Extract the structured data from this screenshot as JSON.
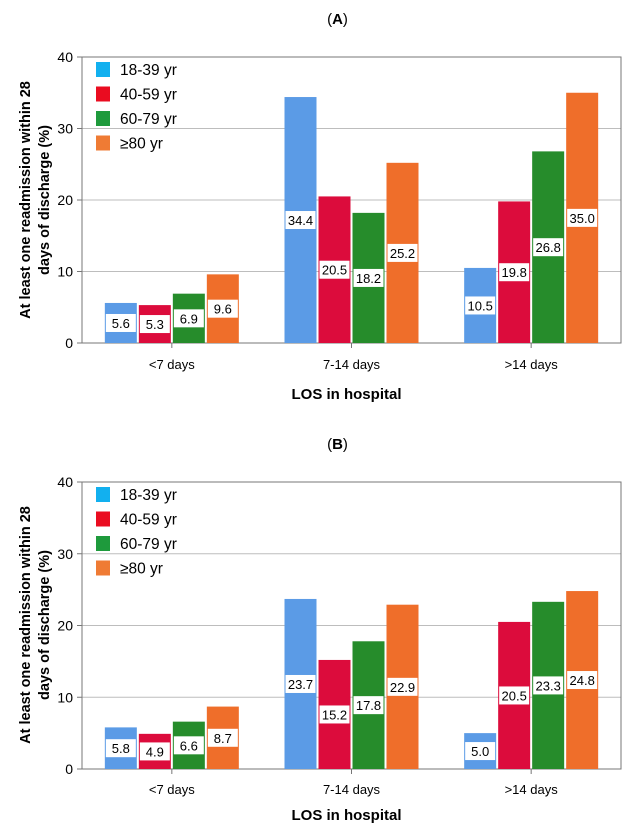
{
  "chart_data": [
    {
      "type": "bar",
      "panel_label": "A",
      "categories": [
        "<7 days",
        "7-14 days",
        ">14 days"
      ],
      "series": [
        {
          "name": "18-39 yr",
          "values": [
            5.6,
            34.4,
            10.5
          ]
        },
        {
          "name": "40-59 yr",
          "values": [
            5.3,
            20.5,
            19.8
          ]
        },
        {
          "name": "60-79 yr",
          "values": [
            6.9,
            18.2,
            26.8
          ]
        },
        {
          "name": "≥80 yr",
          "values": [
            9.6,
            25.2,
            35.0
          ]
        }
      ],
      "data_labels": [
        [
          "5.6",
          "34.4",
          "10.5"
        ],
        [
          "5.3",
          "20.5",
          "19.8"
        ],
        [
          "6.9",
          "18.2",
          "26.8"
        ],
        [
          "9.6",
          "25.2",
          "35.0"
        ]
      ],
      "xlabel": "LOS in hospital",
      "ylabel": "At least one readmission within 28 days of discharge (%)",
      "ylim": [
        0,
        40
      ],
      "yticks": [
        "0",
        "10",
        "20",
        "30",
        "40"
      ],
      "grid": true,
      "legend": "top-left"
    },
    {
      "type": "bar",
      "panel_label": "B",
      "categories": [
        "<7 days",
        "7-14 days",
        ">14 days"
      ],
      "series": [
        {
          "name": "18-39 yr",
          "values": [
            5.8,
            23.7,
            5.0
          ]
        },
        {
          "name": "40-59 yr",
          "values": [
            4.9,
            15.2,
            20.5
          ]
        },
        {
          "name": "60-79 yr",
          "values": [
            6.6,
            17.8,
            23.3
          ]
        },
        {
          "name": "≥80 yr",
          "values": [
            8.7,
            22.9,
            24.8
          ]
        }
      ],
      "data_labels": [
        [
          "5.8",
          "23.7",
          "5.0"
        ],
        [
          "4.9",
          "15.2",
          "20.5"
        ],
        [
          "6.6",
          "17.8",
          "23.3"
        ],
        [
          "8.7",
          "22.9",
          "24.8"
        ]
      ],
      "xlabel": "LOS in hospital",
      "ylabel": "At least one readmission within 28 days of discharge (%)",
      "ylim": [
        0,
        40
      ],
      "yticks": [
        "0",
        "10",
        "20",
        "30",
        "40"
      ],
      "grid": true,
      "legend": "top-left"
    }
  ],
  "colors": {
    "bars": [
      "#5b9be6",
      "#dc0c3c",
      "#268c2b",
      "#ef6e2a"
    ],
    "legend": [
      "#12b0ef",
      "#ea0c20",
      "#1e9a3c",
      "#ef7b34"
    ],
    "grid": "#bdbdbd",
    "axis": "#777777"
  }
}
